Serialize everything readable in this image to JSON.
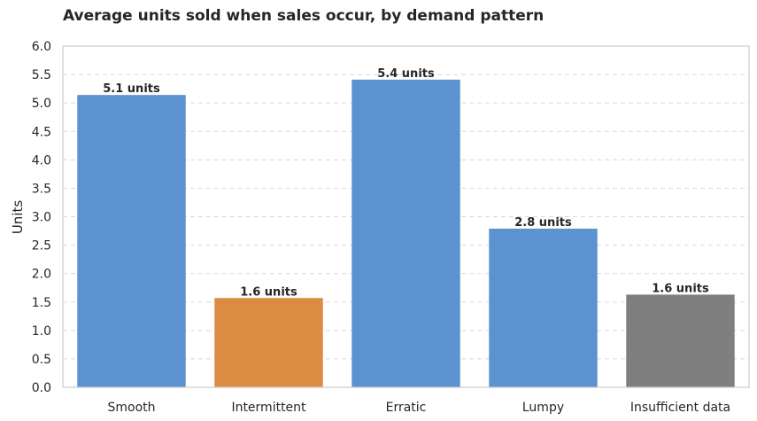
{
  "chart_data": {
    "type": "bar",
    "title": "Average units sold when sales occur, by demand pattern",
    "xlabel": "",
    "ylabel": "Units",
    "categories": [
      "Smooth",
      "Intermittent",
      "Erratic",
      "Lumpy",
      "Insufficient data"
    ],
    "values": [
      5.14,
      1.57,
      5.41,
      2.79,
      1.63
    ],
    "data_labels": [
      "5.1 units",
      "1.6 units",
      "5.4 units",
      "2.8 units",
      "1.6 units"
    ],
    "colors": [
      "#5b92d0",
      "#db8c42",
      "#5b92d0",
      "#5b92d0",
      "#7f7f7f"
    ],
    "ylim": [
      0,
      6
    ],
    "yticks": [
      "0.0",
      "0.5",
      "1.0",
      "1.5",
      "2.0",
      "2.5",
      "3.0",
      "3.5",
      "4.0",
      "4.5",
      "5.0",
      "5.5",
      "6.0"
    ],
    "grid": "y-dashed",
    "legend": "none"
  }
}
